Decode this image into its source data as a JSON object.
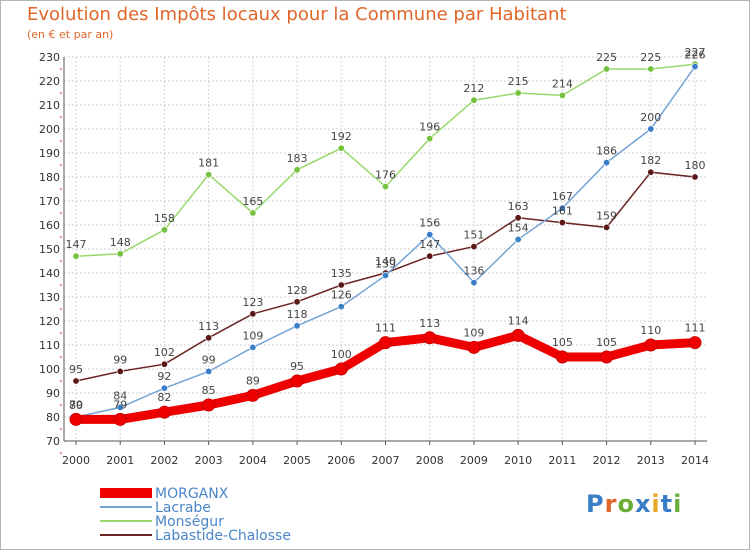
{
  "header": {
    "title": "Evolution des Impôts locaux pour la Commune par Habitant",
    "subtitle": "(en € et par an)"
  },
  "logo": {
    "text": "Proxiti",
    "colors": [
      "#3a7dc9",
      "#e0662a",
      "#6cae3a",
      "#3a7dc9",
      "#e8a826",
      "#3a7dc9",
      "#6cae3a"
    ]
  },
  "chart_data": {
    "type": "line",
    "x": [
      2000,
      2001,
      2002,
      2003,
      2004,
      2005,
      2006,
      2007,
      2008,
      2009,
      2010,
      2011,
      2012,
      2013,
      2014
    ],
    "ylim": [
      70,
      230
    ],
    "yticks": [
      70,
      80,
      90,
      100,
      110,
      120,
      130,
      140,
      150,
      160,
      170,
      180,
      190,
      200,
      210,
      220,
      230
    ],
    "grid": true,
    "legend_position": "bottom-left",
    "series": [
      {
        "name": "MORGANX",
        "color": "#ee0000",
        "values": [
          79,
          79,
          82,
          85,
          89,
          95,
          100,
          111,
          113,
          109,
          114,
          105,
          105,
          110,
          111
        ]
      },
      {
        "name": "Lacrabe",
        "color": "#72a4d6",
        "values": [
          80,
          84,
          92,
          99,
          109,
          118,
          126,
          139,
          156,
          136,
          154,
          167,
          186,
          200,
          226
        ]
      },
      {
        "name": "Monségur",
        "color": "#98d86c",
        "values": [
          147,
          148,
          158,
          181,
          165,
          183,
          192,
          176,
          196,
          212,
          215,
          214,
          225,
          225,
          227
        ]
      },
      {
        "name": "Labastide-Chalosse",
        "color": "#6b2424",
        "values": [
          95,
          99,
          102,
          113,
          123,
          128,
          135,
          140,
          147,
          151,
          163,
          161,
          159,
          182,
          180
        ]
      }
    ]
  }
}
